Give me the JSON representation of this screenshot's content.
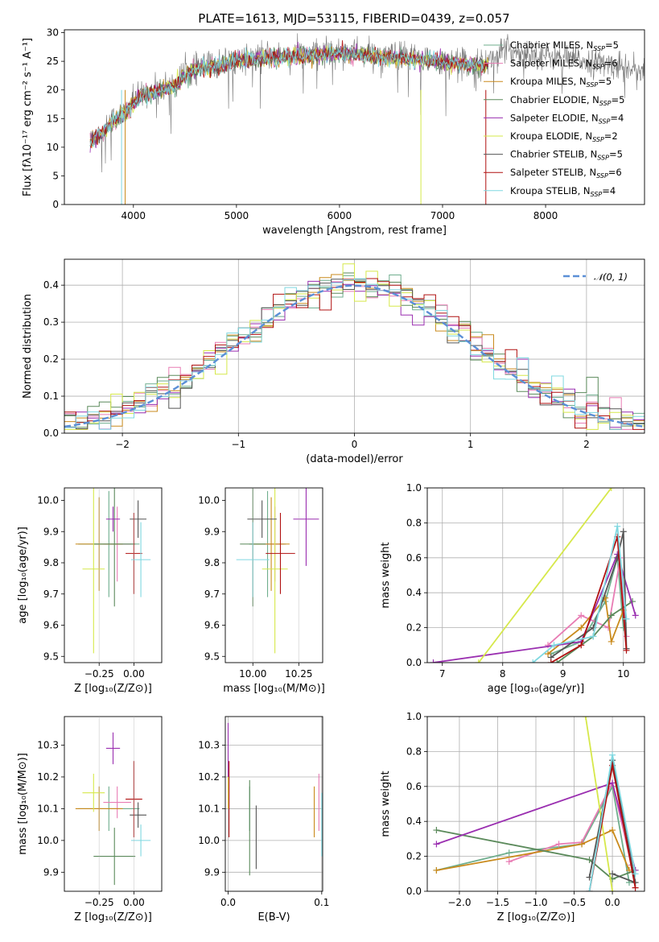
{
  "figure_title": "PLATE=1613, MJD=53115, FIBERID=0439, z=0.057",
  "colors": {
    "Chabrier MILES": "#6fae8e",
    "Salpeter MILES": "#e87cb4",
    "Kroupa MILES": "#c98a1c",
    "Chabrier ELODIE": "#5b8a5b",
    "Salpeter ELODIE": "#9a2fb0",
    "Kroupa ELODIE": "#d6e84a",
    "Chabrier STELIB": "#555555",
    "Salpeter STELIB": "#b01010",
    "Kroupa STELIB": "#7fd8e0",
    "normal": "#5b8fd6"
  },
  "chart_data": [
    {
      "id": "spectrum",
      "type": "line",
      "xlabel": "wavelength [Angstrom, rest frame]",
      "ylabel": "Flux [fλ10⁻¹⁷ erg cm⁻² s⁻¹ A⁻¹]",
      "xlim": [
        3330,
        8960
      ],
      "ylim": [
        0,
        30.5
      ],
      "xticks": [
        4000,
        5000,
        6000,
        7000,
        8000
      ],
      "yticks": [
        0,
        5,
        10,
        15,
        20,
        25,
        30
      ],
      "continuum": [
        [
          3580,
          11
        ],
        [
          3700,
          13
        ],
        [
          3800,
          15
        ],
        [
          3900,
          16
        ],
        [
          3950,
          17
        ],
        [
          4000,
          18
        ],
        [
          4100,
          19.5
        ],
        [
          4200,
          20
        ],
        [
          4300,
          20.5
        ],
        [
          4400,
          21
        ],
        [
          4500,
          23
        ],
        [
          4600,
          24
        ],
        [
          4800,
          24.5
        ],
        [
          5000,
          25.5
        ],
        [
          5200,
          25.8
        ],
        [
          5400,
          26
        ],
        [
          5600,
          26.3
        ],
        [
          5800,
          26.5
        ],
        [
          6000,
          26.8
        ],
        [
          6200,
          26.5
        ],
        [
          6400,
          26
        ],
        [
          6600,
          26
        ],
        [
          6800,
          25.5
        ],
        [
          7000,
          25.3
        ],
        [
          7200,
          25
        ],
        [
          7400,
          24.5
        ],
        [
          7600,
          27
        ],
        [
          7800,
          26.5
        ],
        [
          8000,
          26
        ],
        [
          8200,
          25.5
        ],
        [
          8400,
          25
        ],
        [
          8600,
          24.5
        ],
        [
          8800,
          24
        ],
        [
          8960,
          23.5
        ]
      ],
      "legend_entries": [
        {
          "label": "Chabrier MILES, N",
          "sub": "SSP",
          "suffix": "=5"
        },
        {
          "label": "Salpeter MILES, N",
          "sub": "SSP",
          "suffix": "=6"
        },
        {
          "label": "Kroupa MILES, N",
          "sub": "SSP",
          "suffix": "=5"
        },
        {
          "label": "Chabrier ELODIE, N",
          "sub": "SSP",
          "suffix": "=5"
        },
        {
          "label": "Salpeter ELODIE, N",
          "sub": "SSP",
          "suffix": "=4"
        },
        {
          "label": "Kroupa ELODIE, N",
          "sub": "SSP",
          "suffix": "=2"
        },
        {
          "label": "Chabrier STELIB, N",
          "sub": "SSP",
          "suffix": "=5"
        },
        {
          "label": "Salpeter STELIB, N",
          "sub": "SSP",
          "suffix": "=6"
        },
        {
          "label": "Kroupa STELIB, N",
          "sub": "SSP",
          "suffix": "=4"
        }
      ]
    },
    {
      "id": "residuals",
      "type": "histogram",
      "xlabel": "(data-model)/error",
      "ylabel": "Normed distribution",
      "xlim": [
        -2.5,
        2.5
      ],
      "ylim": [
        0,
        0.47
      ],
      "xticks": [
        -2,
        -1,
        0,
        1,
        2
      ],
      "yticks": [
        0.0,
        0.1,
        0.2,
        0.3,
        0.4
      ],
      "bin_width": 0.1,
      "legend": "𝒩(0, 1)"
    },
    {
      "id": "age_vs_z",
      "type": "errorbar",
      "xlabel": "Z [log₁₀(Z/Z⊙)]",
      "ylabel": "age  [log₁₀(age/yr)]",
      "xlim": [
        -0.5,
        0.2
      ],
      "ylim": [
        9.48,
        10.04
      ],
      "xticks": [
        -0.25,
        0.0
      ],
      "yticks": [
        9.5,
        9.6,
        9.7,
        9.8,
        9.9,
        10.0
      ],
      "points": [
        {
          "s": "Chabrier MILES",
          "x": -0.18,
          "y": 9.86,
          "xe": 0.22,
          "ye": 0.17
        },
        {
          "s": "Salpeter MILES",
          "x": -0.12,
          "y": 9.86,
          "xe": 0.1,
          "ye": 0.12
        },
        {
          "s": "Kroupa MILES",
          "x": -0.25,
          "y": 9.86,
          "xe": 0.17,
          "ye": 0.15
        },
        {
          "s": "Chabrier ELODIE",
          "x": -0.14,
          "y": 9.86,
          "xe": 0.15,
          "ye": 0.2
        },
        {
          "s": "Salpeter ELODIE",
          "x": -0.15,
          "y": 9.94,
          "xe": 0.05,
          "ye": 0.04
        },
        {
          "s": "Kroupa ELODIE",
          "x": -0.29,
          "y": 9.78,
          "xe": 0.08,
          "ye": 0.27
        },
        {
          "s": "Chabrier STELIB",
          "x": 0.03,
          "y": 9.94,
          "xe": 0.06,
          "ye": 0.06
        },
        {
          "s": "Salpeter STELIB",
          "x": 0.0,
          "y": 9.83,
          "xe": 0.06,
          "ye": 0.13
        },
        {
          "s": "Kroupa STELIB",
          "x": 0.05,
          "y": 9.81,
          "xe": 0.07,
          "ye": 0.12
        }
      ]
    },
    {
      "id": "age_vs_mass",
      "type": "errorbar",
      "xlabel": "mass [log₁₀(M/M⊙)]",
      "ylabel": "",
      "xlim": [
        9.85,
        10.38
      ],
      "ylim": [
        9.48,
        10.04
      ],
      "xticks": [
        10.0,
        10.25
      ],
      "yticks": [
        9.5,
        9.6,
        9.7,
        9.8,
        9.9,
        10.0
      ],
      "points": [
        {
          "s": "Chabrier MILES",
          "x": 10.08,
          "y": 9.86,
          "xe": 0.1,
          "ye": 0.17
        },
        {
          "s": "Salpeter MILES",
          "x": 10.12,
          "y": 9.86,
          "xe": 0.05,
          "ye": 0.12
        },
        {
          "s": "Kroupa MILES",
          "x": 10.1,
          "y": 9.86,
          "xe": 0.1,
          "ye": 0.15
        },
        {
          "s": "Chabrier ELODIE",
          "x": 10.0,
          "y": 9.86,
          "xe": 0.07,
          "ye": 0.2
        },
        {
          "s": "Salpeter ELODIE",
          "x": 10.29,
          "y": 9.94,
          "xe": 0.07,
          "ye": 0.15
        },
        {
          "s": "Kroupa ELODIE",
          "x": 10.12,
          "y": 9.78,
          "xe": 0.07,
          "ye": 0.27
        },
        {
          "s": "Chabrier STELIB",
          "x": 10.05,
          "y": 9.94,
          "xe": 0.08,
          "ye": 0.06
        },
        {
          "s": "Salpeter STELIB",
          "x": 10.15,
          "y": 9.83,
          "xe": 0.08,
          "ye": 0.13
        },
        {
          "s": "Kroupa STELIB",
          "x": 10.0,
          "y": 9.81,
          "xe": 0.09,
          "ye": 0.12
        }
      ]
    },
    {
      "id": "weight_vs_age",
      "type": "line",
      "xlabel": "age  [log₁₀(age/yr)]",
      "ylabel": "mass weight",
      "xlim": [
        6.75,
        10.35
      ],
      "ylim": [
        0,
        1.0
      ],
      "xticks": [
        7,
        8,
        9,
        10
      ],
      "yticks": [
        0.0,
        0.2,
        0.4,
        0.6,
        0.8,
        1.0
      ],
      "series": [
        {
          "s": "Chabrier MILES",
          "x": [
            8.8,
            9.3,
            9.7,
            9.9,
            10.0
          ],
          "y": [
            0.05,
            0.12,
            0.35,
            0.6,
            0.2
          ]
        },
        {
          "s": "Salpeter MILES",
          "x": [
            8.75,
            9.3,
            9.75,
            9.95,
            10.05
          ],
          "y": [
            0.1,
            0.27,
            0.2,
            0.6,
            0.15
          ]
        },
        {
          "s": "Kroupa MILES",
          "x": [
            8.75,
            9.3,
            9.7,
            9.8,
            10.0
          ],
          "y": [
            0.05,
            0.2,
            0.37,
            0.12,
            0.3
          ]
        },
        {
          "s": "Chabrier ELODIE",
          "x": [
            8.9,
            9.5,
            9.8,
            10.15
          ],
          "y": [
            0.0,
            0.15,
            0.27,
            0.35
          ]
        },
        {
          "s": "Salpeter ELODIE",
          "x": [
            6.85,
            9.3,
            9.9,
            10.2
          ],
          "y": [
            0.0,
            0.12,
            0.62,
            0.27
          ]
        },
        {
          "s": "Kroupa ELODIE",
          "x": [
            7.6,
            9.8
          ],
          "y": [
            0.0,
            1.0
          ]
        },
        {
          "s": "Chabrier STELIB",
          "x": [
            8.8,
            9.5,
            9.9,
            10.0,
            10.05
          ],
          "y": [
            0.03,
            0.2,
            0.6,
            0.75,
            0.08
          ]
        },
        {
          "s": "Salpeter STELIB",
          "x": [
            8.8,
            9.3,
            9.9,
            10.05
          ],
          "y": [
            0.0,
            0.1,
            0.72,
            0.07
          ]
        },
        {
          "s": "Kroupa STELIB",
          "x": [
            8.5,
            8.85,
            9.5,
            9.9,
            10.05
          ],
          "y": [
            0.0,
            0.1,
            0.15,
            0.78,
            0.25
          ]
        }
      ]
    },
    {
      "id": "mass_vs_z",
      "type": "errorbar",
      "xlabel": "Z [log₁₀(Z/Z⊙)]",
      "ylabel": "mass [log₁₀(M/M⊙)]",
      "xlim": [
        -0.5,
        0.2
      ],
      "ylim": [
        9.84,
        10.39
      ],
      "xticks": [
        -0.25,
        0.0
      ],
      "yticks": [
        9.9,
        10.0,
        10.1,
        10.2,
        10.3
      ],
      "points": [
        {
          "s": "Chabrier MILES",
          "x": -0.18,
          "y": 10.1,
          "xe": 0.22,
          "ye": 0.07
        },
        {
          "s": "Salpeter MILES",
          "x": -0.12,
          "y": 10.12,
          "xe": 0.1,
          "ye": 0.05
        },
        {
          "s": "Kroupa MILES",
          "x": -0.25,
          "y": 10.1,
          "xe": 0.17,
          "ye": 0.07
        },
        {
          "s": "Chabrier ELODIE",
          "x": -0.14,
          "y": 9.95,
          "xe": 0.15,
          "ye": 0.09
        },
        {
          "s": "Salpeter ELODIE",
          "x": -0.15,
          "y": 10.29,
          "xe": 0.05,
          "ye": 0.05
        },
        {
          "s": "Kroupa ELODIE",
          "x": -0.29,
          "y": 10.15,
          "xe": 0.08,
          "ye": 0.06
        },
        {
          "s": "Chabrier STELIB",
          "x": 0.03,
          "y": 10.08,
          "xe": 0.06,
          "ye": 0.04
        },
        {
          "s": "Salpeter STELIB",
          "x": 0.0,
          "y": 10.13,
          "xe": 0.06,
          "ye": 0.12
        },
        {
          "s": "Kroupa STELIB",
          "x": 0.05,
          "y": 10.0,
          "xe": 0.07,
          "ye": 0.05
        }
      ]
    },
    {
      "id": "mass_vs_ebv",
      "type": "errorbar",
      "xlabel": "E(B-V)",
      "ylabel": "",
      "xlim": [
        -0.003,
        0.101
      ],
      "ylim": [
        9.84,
        10.39
      ],
      "xticks": [
        0.0,
        0.1
      ],
      "yticks": [
        9.9,
        10.0,
        10.1,
        10.2,
        10.3
      ],
      "points": [
        {
          "s": "Chabrier MILES",
          "x": 0.023,
          "y": 10.1,
          "xe": 0,
          "ye": 0.07
        },
        {
          "s": "Salpeter MILES",
          "x": 0.097,
          "y": 10.12,
          "xe": 0,
          "ye": 0.09
        },
        {
          "s": "Kroupa MILES",
          "x": 0.092,
          "y": 10.09,
          "xe": 0,
          "ye": 0.08
        },
        {
          "s": "Chabrier ELODIE",
          "x": 0.023,
          "y": 10.04,
          "xe": 0,
          "ye": 0.15
        },
        {
          "s": "Salpeter ELODIE",
          "x": 0.0,
          "y": 10.26,
          "xe": 0,
          "ye": 0.11
        },
        {
          "s": "Kroupa ELODIE",
          "x": 0.0,
          "y": 10.15,
          "xe": 0,
          "ye": 0.05
        },
        {
          "s": "Chabrier STELIB",
          "x": 0.03,
          "y": 10.01,
          "xe": 0,
          "ye": 0.1
        },
        {
          "s": "Salpeter STELIB",
          "x": 0.001,
          "y": 10.13,
          "xe": 0,
          "ye": 0.12
        },
        {
          "s": "Kroupa STELIB",
          "x": 0.1,
          "y": 10.05,
          "xe": 0,
          "ye": 0.1
        }
      ]
    },
    {
      "id": "weight_vs_z",
      "type": "line",
      "xlabel": "Z [log₁₀(Z/Z⊙)]",
      "ylabel": "mass weight",
      "xlim": [
        -2.42,
        0.42
      ],
      "ylim": [
        0,
        1.0
      ],
      "xticks": [
        -2.0,
        -1.5,
        -1.0,
        -0.5,
        0.0
      ],
      "yticks": [
        0.0,
        0.2,
        0.4,
        0.6,
        0.8,
        1.0
      ],
      "series": [
        {
          "s": "Chabrier MILES",
          "x": [
            -2.3,
            -1.35,
            -0.4,
            0.0,
            0.22
          ],
          "y": [
            0.12,
            0.22,
            0.27,
            0.6,
            0.05
          ]
        },
        {
          "s": "Salpeter MILES",
          "x": [
            -1.35,
            -0.7,
            -0.4,
            0.0,
            0.25
          ],
          "y": [
            0.17,
            0.27,
            0.28,
            0.62,
            0.15
          ]
        },
        {
          "s": "Kroupa MILES",
          "x": [
            -2.3,
            -0.4,
            0.0,
            0.22
          ],
          "y": [
            0.12,
            0.27,
            0.35,
            0.12
          ]
        },
        {
          "s": "Chabrier ELODIE",
          "x": [
            -2.3,
            -0.3,
            0.0,
            0.3
          ],
          "y": [
            0.35,
            0.18,
            0.07,
            0.12
          ]
        },
        {
          "s": "Salpeter ELODIE",
          "x": [
            -2.3,
            0.0,
            0.3
          ],
          "y": [
            0.27,
            0.62,
            0.12
          ]
        },
        {
          "s": "Kroupa ELODIE",
          "x": [
            -0.35,
            0.0
          ],
          "y": [
            1.0,
            0.0
          ]
        },
        {
          "s": "Chabrier STELIB",
          "x": [
            -0.3,
            0.0,
            0.3,
            0.0
          ],
          "y": [
            0.08,
            0.75,
            0.05,
            0.1
          ]
        },
        {
          "s": "Salpeter STELIB",
          "x": [
            -0.3,
            0.0,
            0.3
          ],
          "y": [
            0.0,
            0.72,
            0.02
          ]
        },
        {
          "s": "Kroupa STELIB",
          "x": [
            -0.3,
            0.0,
            0.3
          ],
          "y": [
            0.0,
            0.78,
            0.1
          ]
        }
      ]
    }
  ]
}
